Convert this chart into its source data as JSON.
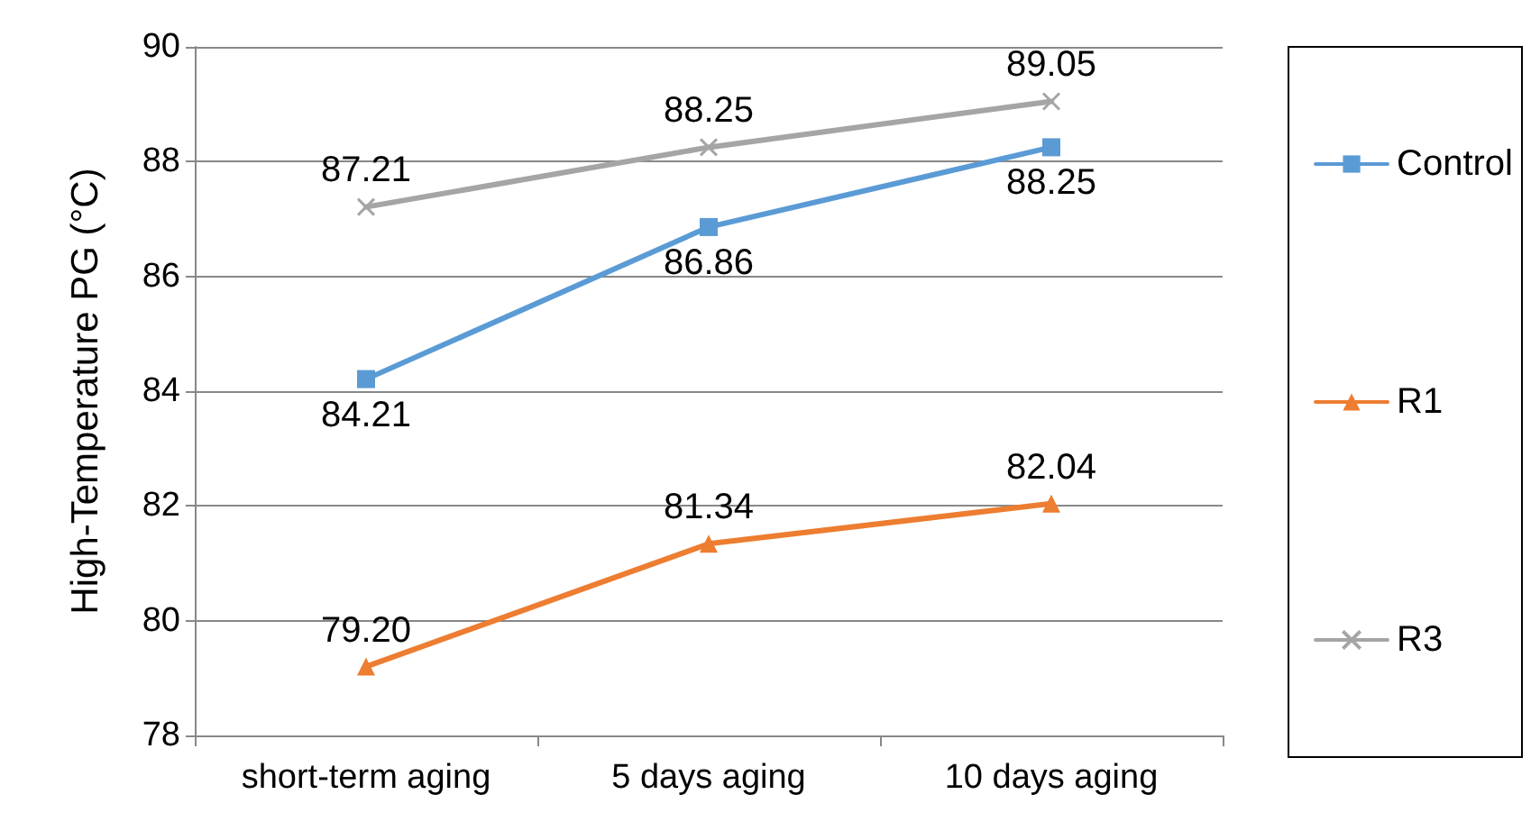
{
  "chart_data": {
    "type": "line",
    "ylabel": "High-Temperature PG (°C)",
    "categories": [
      "short-term aging",
      "5 days aging",
      "10 days aging"
    ],
    "series": [
      {
        "name": "Control",
        "color": "#5b9bd5",
        "marker": "square",
        "values": [
          84.21,
          86.86,
          88.25
        ],
        "value_labels": [
          "84.21",
          "86.86",
          "88.25"
        ]
      },
      {
        "name": "R1",
        "color": "#ed7d31",
        "marker": "triangle",
        "values": [
          79.2,
          81.34,
          82.04
        ],
        "value_labels": [
          "79.20",
          "81.34",
          "82.04"
        ]
      },
      {
        "name": "R3",
        "color": "#a5a5a5",
        "marker": "cross",
        "values": [
          87.21,
          88.25,
          89.05
        ],
        "value_labels": [
          "87.21",
          "88.25",
          "89.05"
        ]
      }
    ],
    "ylim": [
      78,
      90
    ],
    "yticks": [
      78,
      80,
      82,
      84,
      86,
      88,
      90
    ],
    "grid": "y",
    "legend": "right",
    "line_style": "solid"
  }
}
